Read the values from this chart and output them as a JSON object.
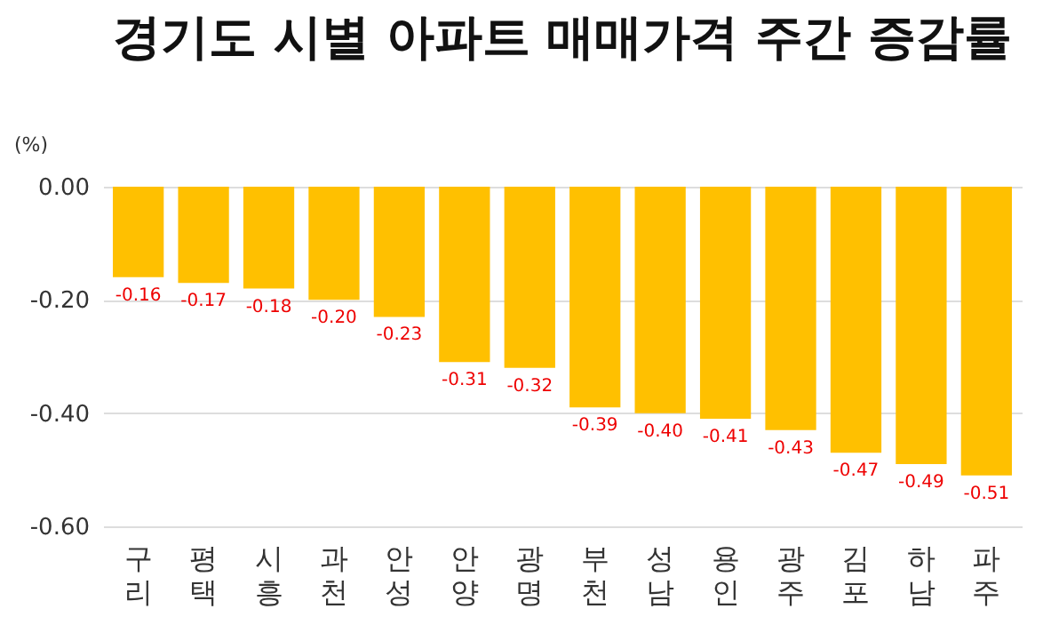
{
  "chart_data": {
    "type": "bar",
    "title": "경기도 시별 아파트 매매가격 주간 증감률",
    "ylabel": "(%)",
    "categories": [
      "구리",
      "평택",
      "시흥",
      "과천",
      "안성",
      "안양",
      "광명",
      "부천",
      "성남",
      "용인",
      "광주",
      "김포",
      "하남",
      "파주"
    ],
    "values": [
      -0.16,
      -0.17,
      -0.18,
      -0.2,
      -0.23,
      -0.31,
      -0.32,
      -0.39,
      -0.4,
      -0.41,
      -0.43,
      -0.47,
      -0.49,
      -0.51
    ],
    "color": "#ffc000",
    "ylim": [
      -0.6,
      0
    ],
    "yticks": [
      {
        "value": 0,
        "label": "0.00"
      },
      {
        "value": -0.2,
        "label": "-0.20"
      },
      {
        "value": -0.4,
        "label": "-0.40"
      },
      {
        "value": -0.6,
        "label": "-0.60"
      }
    ],
    "grid": "y",
    "value_labels": [
      "-0.16",
      "-0.17",
      "-0.18",
      "-0.20",
      "-0.23",
      "-0.31",
      "-0.32",
      "-0.39",
      "-0.40",
      "-0.41",
      "-0.43",
      "-0.47",
      "-0.49",
      "-0.51"
    ]
  }
}
